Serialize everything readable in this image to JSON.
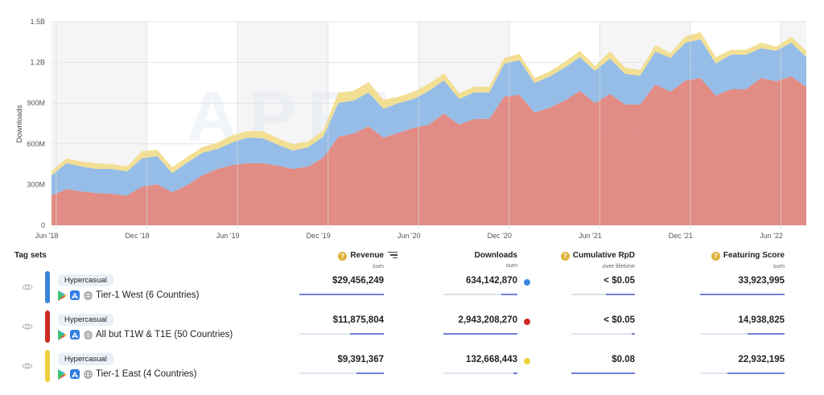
{
  "chart_data": {
    "type": "area",
    "stacked": true,
    "title": "",
    "xlabel": "",
    "ylabel": "Downloads",
    "ylim": [
      0,
      1500000000
    ],
    "yticks": [
      "0",
      "300M",
      "600M",
      "900M",
      "1.2B",
      "1.5B"
    ],
    "ytick_values": [
      0,
      300000000,
      600000000,
      900000000,
      1200000000,
      1500000000
    ],
    "xticks": [
      "Jun '18",
      "Dec '18",
      "Jun '19",
      "Dec '19",
      "Jun '20",
      "Dec '20",
      "Jun '21",
      "Dec '21",
      "Jun '22"
    ],
    "x_interval": "monthly",
    "grid": true,
    "legend": "none",
    "watermark": "APPMAGIC",
    "series": [
      {
        "name": "All but T1W & T1E (50 Countries)",
        "color": "#e08680",
        "values_millions": [
          219,
          267,
          249,
          237,
          231,
          219,
          285,
          302,
          243,
          297,
          368,
          415,
          445,
          457,
          457,
          439,
          415,
          433,
          498,
          652,
          676,
          729,
          646,
          682,
          718,
          741,
          824,
          741,
          783,
          783,
          949,
          961,
          830,
          866,
          919,
          990,
          901,
          967,
          890,
          890,
          1038,
          984,
          1067,
          1085,
          955,
          1002,
          1002,
          1085,
          1061,
          1097,
          1020
        ]
      },
      {
        "name": "Tier-1 West (6 Countries)",
        "color": "#8fb9e6",
        "values_millions": [
          148,
          190,
          184,
          178,
          184,
          178,
          208,
          208,
          142,
          166,
          166,
          148,
          166,
          190,
          184,
          154,
          136,
          142,
          154,
          249,
          243,
          249,
          213,
          219,
          213,
          249,
          243,
          190,
          196,
          196,
          243,
          255,
          219,
          231,
          243,
          249,
          237,
          261,
          225,
          213,
          243,
          249,
          279,
          285,
          237,
          255,
          255,
          219,
          225,
          249,
          219
        ]
      },
      {
        "name": "Tier-1 East (4 Countries)",
        "color": "#f1dd8e",
        "values_millions": [
          30,
          36,
          36,
          42,
          36,
          36,
          53,
          47,
          42,
          42,
          42,
          47,
          53,
          47,
          53,
          47,
          47,
          42,
          47,
          77,
          71,
          77,
          65,
          47,
          53,
          53,
          53,
          42,
          42,
          42,
          42,
          47,
          36,
          36,
          42,
          47,
          36,
          53,
          47,
          42,
          47,
          36,
          47,
          53,
          47,
          36,
          36,
          42,
          30,
          42,
          47
        ]
      }
    ]
  },
  "table": {
    "tag_sets_label": "Tag sets",
    "columns": [
      {
        "key": "revenue",
        "label": "Revenue",
        "sub": "sum",
        "help": true,
        "sorted": true
      },
      {
        "key": "downloads",
        "label": "Downloads",
        "sub": "sum",
        "help": false
      },
      {
        "key": "rpd",
        "label": "Cumulative RpD",
        "sub": "over lifetime",
        "help": true
      },
      {
        "key": "featuring",
        "label": "Featuring Score",
        "sub": "sum",
        "help": true
      }
    ],
    "rows": [
      {
        "color": "#3a86d8",
        "tag": "Hypercasual",
        "name": "Tier-1 West (6 Countries)",
        "revenue": "$29,456,249",
        "revenue_pct": 100,
        "downloads": "634,142,870",
        "downloads_pct": 22,
        "rpd": "< $0.05",
        "rpd_pct": 45,
        "featuring": "33,923,995",
        "featuring_pct": 100
      },
      {
        "color": "#cc2b22",
        "tag": "Hypercasual",
        "name": "All but T1W & T1E (50 Countries)",
        "revenue": "$11,875,804",
        "revenue_pct": 40,
        "downloads": "2,943,208,270",
        "downloads_pct": 100,
        "rpd": "< $0.05",
        "rpd_pct": 5,
        "featuring": "14,938,825",
        "featuring_pct": 44
      },
      {
        "color": "#ecd13c",
        "tag": "Hypercasual",
        "name": "Tier-1 East (4 Countries)",
        "revenue": "$9,391,367",
        "revenue_pct": 32,
        "downloads": "132,668,443",
        "downloads_pct": 5,
        "rpd": "$0.08",
        "rpd_pct": 100,
        "featuring": "22,932,195",
        "featuring_pct": 68
      }
    ],
    "icons": {
      "visibility": "eye-icon",
      "help": "question-icon",
      "sort": "sort-icon",
      "platform1": "google-play-icon",
      "platform2": "app-store-icon",
      "region": "globe-icon"
    }
  }
}
